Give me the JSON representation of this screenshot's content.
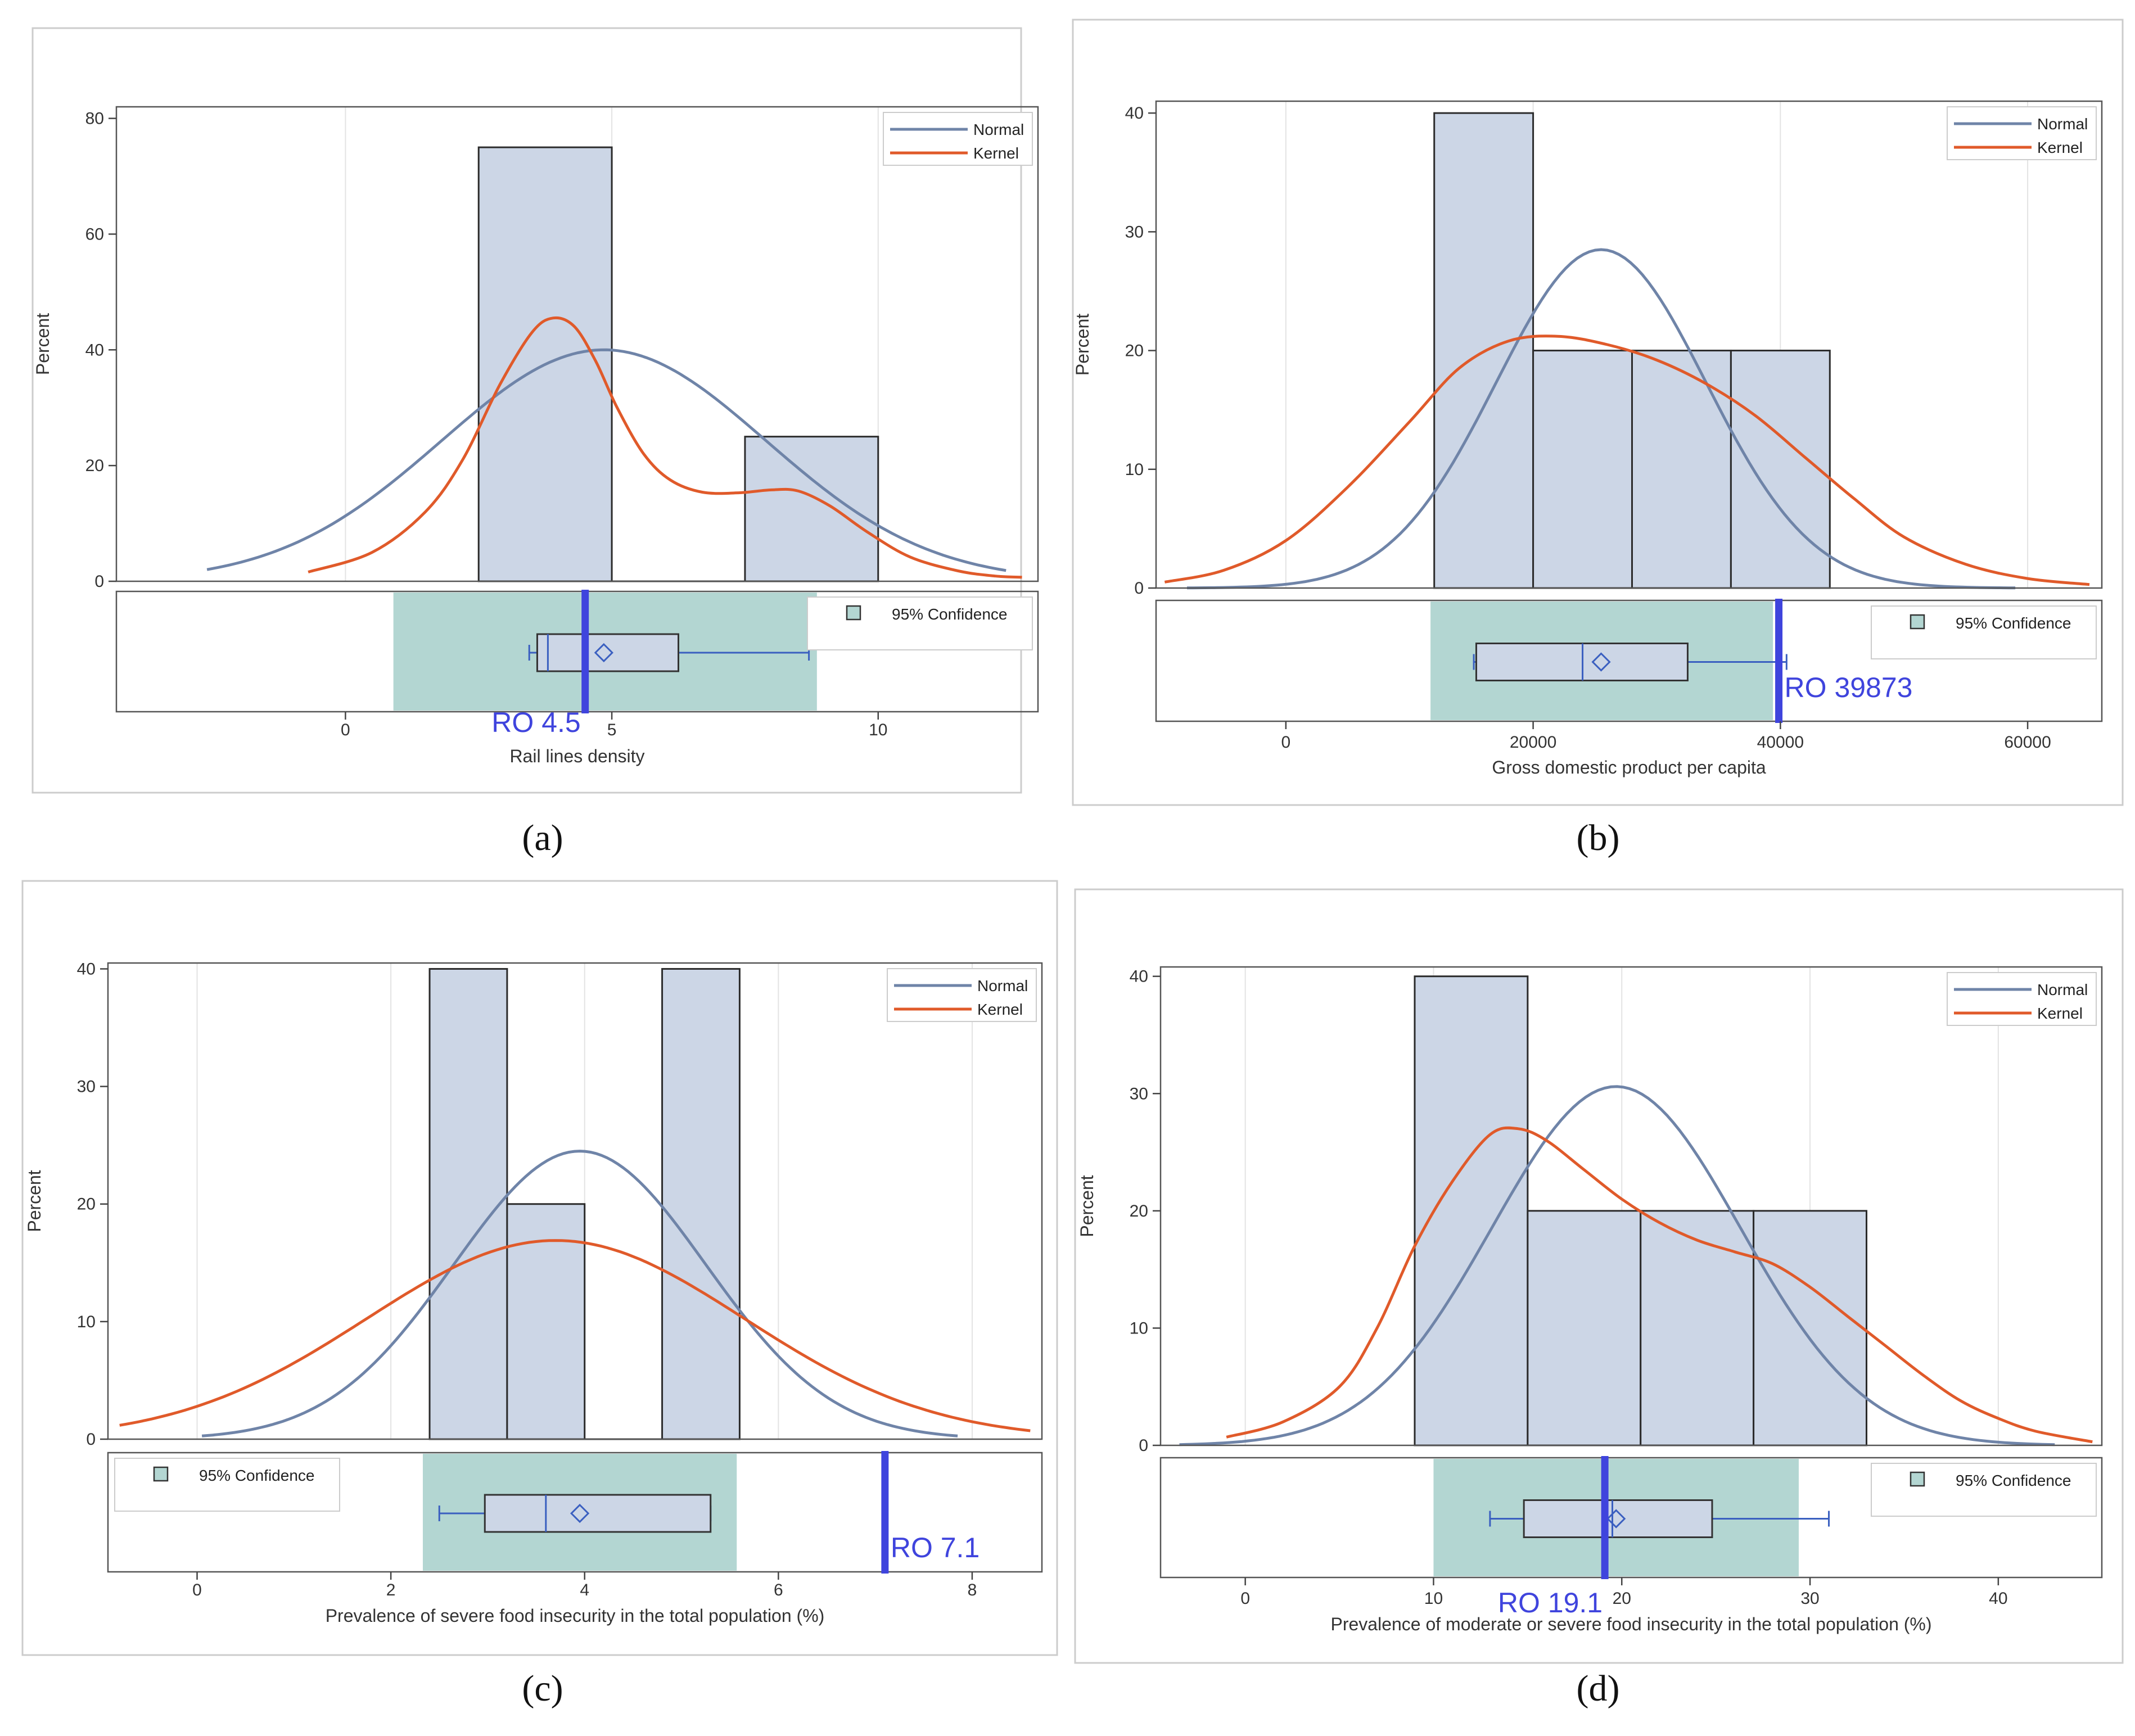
{
  "chart_data": [
    {
      "type": "histogram",
      "caption": "(a)",
      "xlabel": "Rail lines density",
      "ylabel": "Percent",
      "xlim": [
        -4.3,
        13
      ],
      "ylim": [
        0,
        82
      ],
      "xticks": [
        0,
        5,
        10
      ],
      "yticks": [
        0,
        20,
        40,
        60,
        80
      ],
      "bins": [
        {
          "from": 2.5,
          "to": 5,
          "value": 75
        },
        {
          "from": 5,
          "to": 7.5,
          "value": 0
        },
        {
          "from": 7.5,
          "to": 10,
          "value": 25
        }
      ],
      "normal": {
        "name": "Normal",
        "mean": 4.85,
        "sd": 3.05,
        "peak": 40,
        "x_range": [
          -2.6,
          12.4
        ]
      },
      "kernel": {
        "name": "Kernel",
        "points": [
          [
            -0.7,
            1.6
          ],
          [
            0.5,
            5
          ],
          [
            1.5,
            12
          ],
          [
            2.2,
            21
          ],
          [
            2.9,
            34
          ],
          [
            3.5,
            43
          ],
          [
            3.9,
            45.5
          ],
          [
            4.3,
            44
          ],
          [
            4.7,
            38
          ],
          [
            5.1,
            30
          ],
          [
            5.6,
            22
          ],
          [
            6.1,
            17.5
          ],
          [
            6.7,
            15.4
          ],
          [
            7.4,
            15.3
          ],
          [
            8,
            15.8
          ],
          [
            8.5,
            15.6
          ],
          [
            9.1,
            13
          ],
          [
            9.8,
            8.5
          ],
          [
            10.6,
            4.2
          ],
          [
            11.5,
            1.8
          ],
          [
            12.2,
            0.9
          ],
          [
            12.7,
            0.7
          ]
        ]
      },
      "confidence": {
        "label": "95% Confidence",
        "from": 0.9,
        "to": 8.85,
        "legend_position": "top-right"
      },
      "boxplot": {
        "whisker_low": 3.45,
        "q1": 3.6,
        "median": 3.8,
        "mean": 4.85,
        "q3": 6.25,
        "whisker_high": 8.7
      },
      "reference": {
        "label": "RO 4.5",
        "value": 4.5
      },
      "curve_legend": [
        "Normal",
        "Kernel"
      ]
    },
    {
      "type": "histogram",
      "caption": "(b)",
      "xlabel": "Gross domestic product per capita",
      "ylabel": "Percent",
      "xlim": [
        -10500,
        66000
      ],
      "ylim": [
        0,
        41
      ],
      "xticks": [
        0,
        20000,
        40000,
        60000
      ],
      "yticks": [
        0,
        10,
        20,
        30,
        40
      ],
      "bins": [
        {
          "from": 12000,
          "to": 20000,
          "value": 40
        },
        {
          "from": 20000,
          "to": 28000,
          "value": 20
        },
        {
          "from": 28000,
          "to": 36000,
          "value": 20
        },
        {
          "from": 36000,
          "to": 44000,
          "value": 20
        }
      ],
      "normal": {
        "name": "Normal",
        "mean": 25500,
        "sd": 8500,
        "peak": 28.5,
        "x_range": [
          -8000,
          59000
        ]
      },
      "kernel": {
        "name": "Kernel",
        "points": [
          [
            -9800,
            0.5
          ],
          [
            -5000,
            1.5
          ],
          [
            0,
            4
          ],
          [
            5000,
            8.5
          ],
          [
            10000,
            14
          ],
          [
            14000,
            18.5
          ],
          [
            18000,
            20.8
          ],
          [
            22000,
            21.2
          ],
          [
            26000,
            20.5
          ],
          [
            30000,
            19.2
          ],
          [
            34000,
            17.2
          ],
          [
            38000,
            14.5
          ],
          [
            42000,
            11
          ],
          [
            46000,
            7.5
          ],
          [
            50000,
            4.3
          ],
          [
            55000,
            2
          ],
          [
            60000,
            0.8
          ],
          [
            65000,
            0.3
          ]
        ]
      },
      "confidence": {
        "label": "95% Confidence",
        "from": 11700,
        "to": 39400,
        "legend_position": "top-right"
      },
      "boxplot": {
        "whisker_low": 15200,
        "q1": 15400,
        "median": 24000,
        "mean": 25500,
        "q3": 32500,
        "whisker_high": 40500
      },
      "reference": {
        "label": "RO 39873",
        "value": 39873
      },
      "curve_legend": [
        "Normal",
        "Kernel"
      ]
    },
    {
      "type": "histogram",
      "caption": "(c)",
      "xlabel": "Prevalence of severe food insecurity in the total population (%)",
      "ylabel": "Percent",
      "xlim": [
        -0.92,
        8.72
      ],
      "ylim": [
        0,
        40.5
      ],
      "xticks": [
        0,
        2,
        4,
        6,
        8
      ],
      "yticks": [
        0,
        10,
        20,
        30,
        40
      ],
      "bins": [
        {
          "from": 2.4,
          "to": 3.2,
          "value": 40
        },
        {
          "from": 3.2,
          "to": 4.0,
          "value": 20
        },
        {
          "from": 4.0,
          "to": 4.8,
          "value": 0
        },
        {
          "from": 4.8,
          "to": 5.6,
          "value": 40
        }
      ],
      "normal": {
        "name": "Normal",
        "mean": 3.95,
        "sd": 1.3,
        "peak": 24.5,
        "x_range": [
          0.05,
          7.85
        ]
      },
      "kernel": {
        "name": "Kernel",
        "mean": 3.7,
        "sd": 1.95,
        "peak": 16.9,
        "x_range": [
          -0.8,
          8.6
        ]
      },
      "confidence": {
        "label": "95% Confidence",
        "from": 2.33,
        "to": 5.57,
        "legend_position": "top-left"
      },
      "boxplot": {
        "whisker_low": 2.5,
        "q1": 2.97,
        "median": 3.6,
        "mean": 3.95,
        "q3": 5.3,
        "whisker_high": 5.3
      },
      "reference": {
        "label": "RO  7.1",
        "value": 7.1
      },
      "curve_legend": [
        "Normal",
        "Kernel"
      ]
    },
    {
      "type": "histogram",
      "caption": "(d)",
      "xlabel": "Prevalence of moderate or severe food insecurity in the total population (%)",
      "ylabel": "Percent",
      "xlim": [
        -4.5,
        45.5
      ],
      "ylim": [
        0,
        40.8
      ],
      "xticks": [
        0,
        10,
        20,
        30,
        40
      ],
      "yticks": [
        0,
        10,
        20,
        30,
        40
      ],
      "bins": [
        {
          "from": 9,
          "to": 15,
          "value": 40
        },
        {
          "from": 15,
          "to": 21,
          "value": 20
        },
        {
          "from": 21,
          "to": 27,
          "value": 20
        },
        {
          "from": 27,
          "to": 33,
          "value": 20
        }
      ],
      "normal": {
        "name": "Normal",
        "mean": 19.7,
        "sd": 6.6,
        "peak": 30.6,
        "x_range": [
          -3.5,
          43
        ]
      },
      "kernel": {
        "name": "Kernel",
        "points": [
          [
            -1,
            0.7
          ],
          [
            2,
            2
          ],
          [
            5,
            5
          ],
          [
            7,
            10
          ],
          [
            9,
            17
          ],
          [
            11,
            22.5
          ],
          [
            13,
            26.5
          ],
          [
            14.5,
            27
          ],
          [
            16,
            26
          ],
          [
            18,
            23.5
          ],
          [
            20,
            21
          ],
          [
            22,
            19
          ],
          [
            24,
            17.5
          ],
          [
            26,
            16.5
          ],
          [
            28,
            15.5
          ],
          [
            30,
            13.5
          ],
          [
            32,
            11
          ],
          [
            34,
            8.5
          ],
          [
            36,
            6
          ],
          [
            38,
            3.8
          ],
          [
            40,
            2.3
          ],
          [
            42,
            1.2
          ],
          [
            45,
            0.3
          ]
        ]
      },
      "confidence": {
        "label": "95% Confidence",
        "from": 10,
        "to": 29.4,
        "legend_position": "top-right"
      },
      "boxplot": {
        "whisker_low": 13,
        "q1": 14.8,
        "median": 19.5,
        "mean": 19.7,
        "q3": 24.8,
        "whisker_high": 31
      },
      "reference": {
        "label": "RO  19.1",
        "value": 19.1
      },
      "curve_legend": [
        "Normal",
        "Kernel"
      ]
    }
  ],
  "colors": {
    "bar_fill": "#ccd6e6",
    "bar_stroke": "#2b2b2b",
    "normal_line": "#6f84a8",
    "kernel_line": "#e05a2a",
    "confidence_fill": "#b3d6d2",
    "box_stroke": "#333333",
    "box_fill": "#ccd6e6",
    "mean_marker": "#3a5fc0",
    "reference_line": "#3f44dd",
    "grid": "#e3e3e3",
    "frame": "#cccccc"
  }
}
